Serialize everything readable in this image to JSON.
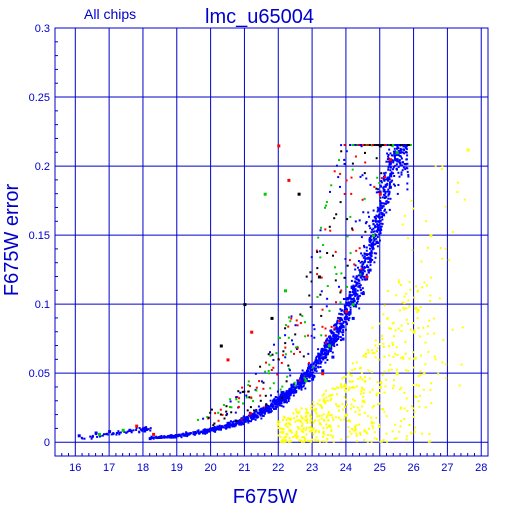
{
  "chart_data": {
    "type": "scatter",
    "title": "lmc_u65004",
    "subtitle": "All chips",
    "xlabel": "F675W",
    "ylabel": "F675W error",
    "xlim": [
      15.4,
      28.2
    ],
    "ylim": [
      -0.01,
      0.3
    ],
    "x_ticks": [
      "16",
      "17",
      "18",
      "19",
      "20",
      "21",
      "22",
      "23",
      "24",
      "25",
      "26",
      "27",
      "28"
    ],
    "y_ticks": [
      "0",
      "0.05",
      "0.1",
      "0.15",
      "0.2",
      "0.25",
      "0.3"
    ],
    "grid": true,
    "legend": "none",
    "series": [
      {
        "color": "#0000ff",
        "points": [
          [
            16.1,
            0.005
          ],
          [
            16.6,
            0.007
          ],
          [
            17.0,
            0.008
          ],
          [
            17.6,
            0.009
          ],
          [
            18.0,
            0.01
          ],
          [
            18.2,
            0.003
          ],
          [
            18.5,
            0.004
          ],
          [
            19.0,
            0.005
          ],
          [
            19.5,
            0.007
          ],
          [
            20.0,
            0.01
          ],
          [
            20.5,
            0.014
          ],
          [
            21.0,
            0.018
          ],
          [
            21.5,
            0.023
          ],
          [
            22.0,
            0.029
          ],
          [
            22.5,
            0.037
          ],
          [
            23.0,
            0.046
          ],
          [
            23.3,
            0.052
          ],
          [
            23.6,
            0.062
          ],
          [
            23.9,
            0.075
          ],
          [
            24.2,
            0.09
          ],
          [
            24.5,
            0.108
          ],
          [
            24.7,
            0.125
          ],
          [
            24.9,
            0.145
          ],
          [
            25.1,
            0.165
          ],
          [
            25.3,
            0.185
          ],
          [
            25.5,
            0.205
          ],
          [
            25.7,
            0.215
          ]
        ]
      },
      {
        "color": "#ff0000",
        "points": [
          [
            17.8,
            0.012
          ],
          [
            18.3,
            0.006
          ],
          [
            20.5,
            0.06
          ],
          [
            21.2,
            0.08
          ],
          [
            22.0,
            0.215
          ],
          [
            22.3,
            0.19
          ],
          [
            23.3,
            0.05
          ],
          [
            24.0,
            0.095
          ],
          [
            24.6,
            0.12
          ],
          [
            25.0,
            0.18
          ],
          [
            25.3,
            0.205
          ]
        ]
      },
      {
        "color": "#00cc00",
        "points": [
          [
            16.7,
            0.006
          ],
          [
            17.4,
            0.009
          ],
          [
            21.6,
            0.18
          ],
          [
            22.2,
            0.11
          ],
          [
            22.8,
            0.045
          ],
          [
            23.5,
            0.07
          ],
          [
            24.2,
            0.1
          ],
          [
            24.8,
            0.15
          ],
          [
            25.5,
            0.21
          ]
        ]
      },
      {
        "color": "#ffff00",
        "points": [
          [
            22.5,
            0.005
          ],
          [
            23.0,
            0.01
          ],
          [
            23.5,
            0.012
          ],
          [
            24.0,
            0.02
          ],
          [
            24.5,
            0.03
          ],
          [
            25.0,
            0.04
          ],
          [
            25.5,
            0.05
          ],
          [
            26.0,
            0.08
          ],
          [
            26.5,
            0.15
          ],
          [
            27.6,
            0.212
          ]
        ]
      },
      {
        "color": "#000000",
        "points": [
          [
            20.3,
            0.07
          ],
          [
            21.0,
            0.1
          ],
          [
            21.8,
            0.09
          ],
          [
            22.6,
            0.18
          ],
          [
            23.2,
            0.12
          ],
          [
            25.0,
            0.215
          ]
        ]
      }
    ]
  }
}
